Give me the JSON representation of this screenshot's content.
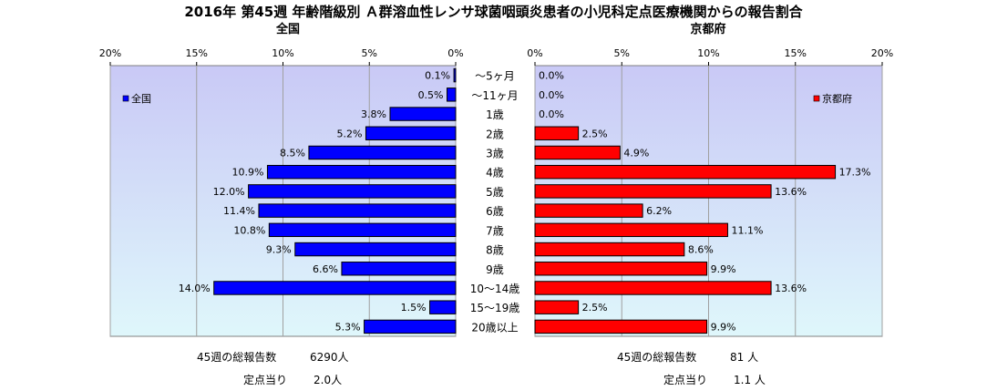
{
  "title": "2016年 第45週 年齢階級別 Ａ群溶血性レンサ球菌咽頭炎患者の小児科定点医療機関からの報告割合",
  "chart_data": [
    {
      "type": "bar",
      "orientation": "horizontal",
      "title": "全国",
      "legend": "全国",
      "legend_position": "left",
      "axis_direction": "reversed",
      "xlim": [
        0,
        20
      ],
      "ticks": [
        "20%",
        "15%",
        "10%",
        "5%",
        "0%"
      ],
      "bar_color": "#0000ff",
      "categories": [
        "～5ヶ月",
        "～11ヶ月",
        "1歳",
        "2歳",
        "3歳",
        "4歳",
        "5歳",
        "6歳",
        "7歳",
        "8歳",
        "9歳",
        "10～14歳",
        "15～19歳",
        "20歳以上"
      ],
      "values": [
        0.1,
        0.5,
        3.8,
        5.2,
        8.5,
        10.9,
        12.0,
        11.4,
        10.8,
        9.3,
        6.6,
        14.0,
        1.5,
        5.3
      ],
      "labels": [
        "0.1%",
        "0.5%",
        "3.8%",
        "5.2%",
        "8.5%",
        "10.9%",
        "12.0%",
        "11.4%",
        "10.8%",
        "9.3%",
        "6.6%",
        "14.0%",
        "1.5%",
        "5.3%"
      ],
      "grid": true
    },
    {
      "type": "bar",
      "orientation": "horizontal",
      "title": "京都府",
      "legend": "京都府",
      "legend_position": "right",
      "xlim": [
        0,
        20
      ],
      "ticks": [
        "0%",
        "5%",
        "10%",
        "15%",
        "20%"
      ],
      "bar_color": "#ff0000",
      "categories": [
        "～5ヶ月",
        "～11ヶ月",
        "1歳",
        "2歳",
        "3歳",
        "4歳",
        "5歳",
        "6歳",
        "7歳",
        "8歳",
        "9歳",
        "10～14歳",
        "15～19歳",
        "20歳以上"
      ],
      "values": [
        0.0,
        0.0,
        0.0,
        2.5,
        4.9,
        17.3,
        13.6,
        6.2,
        11.1,
        8.6,
        9.9,
        13.6,
        2.5,
        9.9
      ],
      "labels": [
        "0.0%",
        "0.0%",
        "0.0%",
        "2.5%",
        "4.9%",
        "17.3%",
        "13.6%",
        "6.2%",
        "11.1%",
        "8.6%",
        "9.9%",
        "13.6%",
        "2.5%",
        "9.9%"
      ],
      "grid": true
    }
  ],
  "footer": {
    "national": {
      "total_label": "45週の総報告数",
      "total_value": "6290人",
      "per_label": "定点当り",
      "per_value": "2.0人"
    },
    "kyoto": {
      "total_label": "45週の総報告数",
      "total_value": "81 人",
      "per_label": "定点当り",
      "per_value": "1.1 人"
    }
  }
}
